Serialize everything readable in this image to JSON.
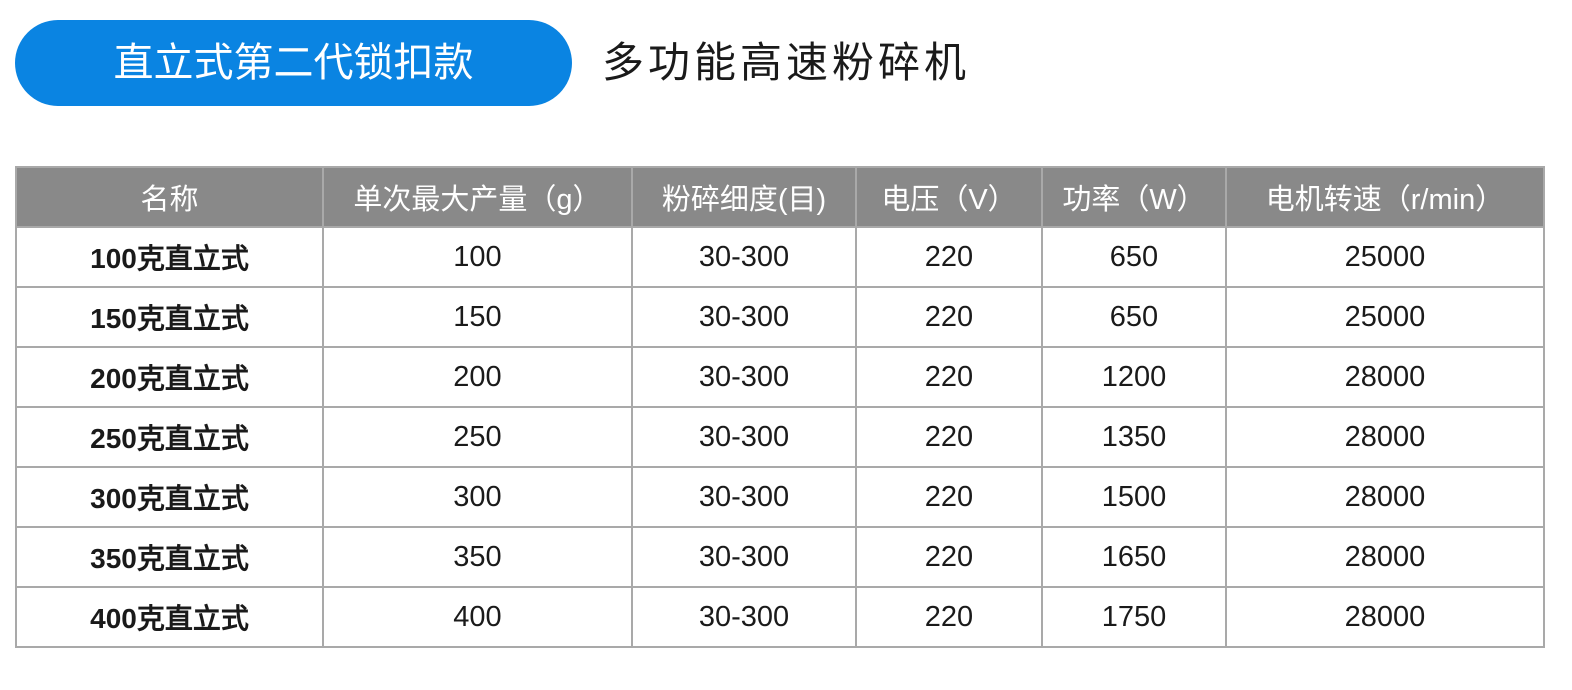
{
  "header": {
    "badge": "直立式第二代锁扣款",
    "title": "多功能高速粉碎机",
    "badge_color": "#0a84e2"
  },
  "table": {
    "columns": [
      "名称",
      "单次最大产量（g）",
      "粉碎细度(目)",
      "电压（V）",
      "功率（W）",
      "电机转速（r/min）"
    ],
    "rows": [
      [
        "100克直立式",
        "100",
        "30-300",
        "220",
        "650",
        "25000"
      ],
      [
        "150克直立式",
        "150",
        "30-300",
        "220",
        "650",
        "25000"
      ],
      [
        "200克直立式",
        "200",
        "30-300",
        "220",
        "1200",
        "28000"
      ],
      [
        "250克直立式",
        "250",
        "30-300",
        "220",
        "1350",
        "28000"
      ],
      [
        "300克直立式",
        "300",
        "30-300",
        "220",
        "1500",
        "28000"
      ],
      [
        "350克直立式",
        "350",
        "30-300",
        "220",
        "1650",
        "28000"
      ],
      [
        "400克直立式",
        "400",
        "30-300",
        "220",
        "1750",
        "28000"
      ]
    ]
  }
}
